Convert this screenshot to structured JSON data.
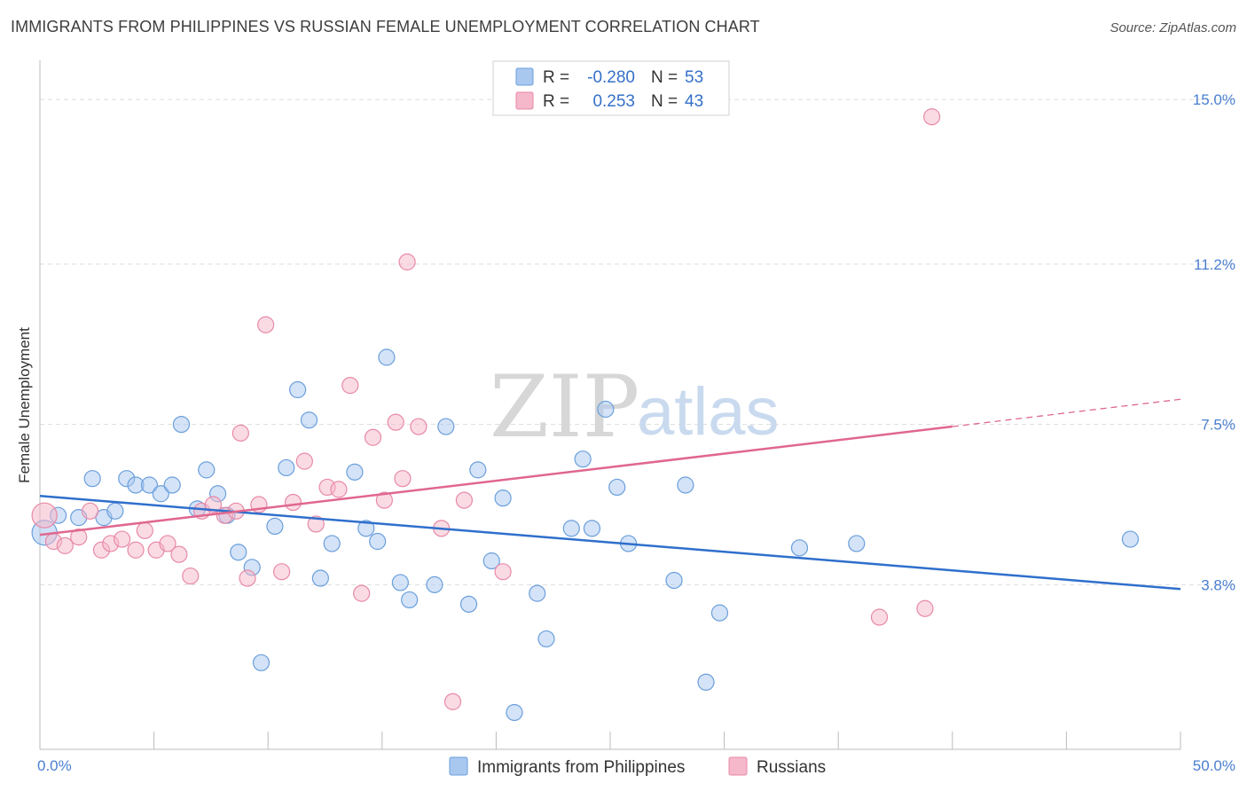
{
  "header": {
    "title": "IMMIGRANTS FROM PHILIPPINES VS RUSSIAN FEMALE UNEMPLOYMENT CORRELATION CHART",
    "source": "Source: ZipAtlas.com"
  },
  "watermark": {
    "zip": "ZIP",
    "atlas": "atlas"
  },
  "legend_box": {
    "rows": [
      {
        "r_label": "R =",
        "r_value": "-0.280",
        "n_label": "N =",
        "n_value": "53",
        "color": "#a9c8f0"
      },
      {
        "r_label": "R =",
        "r_value": "0.253",
        "n_label": "N =",
        "n_value": "43",
        "color": "#f5b8ca"
      }
    ]
  },
  "chart_data": {
    "type": "scatter",
    "title": "IMMIGRANTS FROM PHILIPPINES VS RUSSIAN FEMALE UNEMPLOYMENT CORRELATION CHART",
    "xlabel": "",
    "ylabel": "Female Unemployment",
    "xlim": [
      0,
      50
    ],
    "ylim": [
      0,
      15.7
    ],
    "x_tick_labels": [
      "0.0%",
      "50.0%"
    ],
    "y_tick_labels": [
      "3.8%",
      "7.5%",
      "11.2%",
      "15.0%"
    ],
    "y_tick_values": [
      3.8,
      7.5,
      11.2,
      15.0
    ],
    "grid": true,
    "legend_position": "bottom",
    "series": [
      {
        "name": "Immigrants from Philippines",
        "color": "#a9c8f0",
        "edge": "#6a9fdc",
        "trend_color": "#2f6fcc",
        "trend": {
          "x": [
            0,
            50
          ],
          "y": [
            5.85,
            3.7
          ]
        },
        "points": [
          {
            "x": 0.2,
            "y": 5.0
          },
          {
            "x": 0.8,
            "y": 5.4
          },
          {
            "x": 1.7,
            "y": 5.35
          },
          {
            "x": 2.3,
            "y": 6.25
          },
          {
            "x": 2.8,
            "y": 5.35
          },
          {
            "x": 3.3,
            "y": 5.5
          },
          {
            "x": 3.8,
            "y": 6.25
          },
          {
            "x": 4.2,
            "y": 6.1
          },
          {
            "x": 4.8,
            "y": 6.1
          },
          {
            "x": 5.3,
            "y": 5.9
          },
          {
            "x": 5.8,
            "y": 6.1
          },
          {
            "x": 6.2,
            "y": 7.5
          },
          {
            "x": 6.9,
            "y": 5.55
          },
          {
            "x": 7.3,
            "y": 6.45
          },
          {
            "x": 7.8,
            "y": 5.9
          },
          {
            "x": 8.2,
            "y": 5.4
          },
          {
            "x": 8.7,
            "y": 4.55
          },
          {
            "x": 9.3,
            "y": 4.2
          },
          {
            "x": 9.7,
            "y": 2.0
          },
          {
            "x": 10.3,
            "y": 5.15
          },
          {
            "x": 10.8,
            "y": 6.5
          },
          {
            "x": 11.3,
            "y": 8.3
          },
          {
            "x": 11.8,
            "y": 7.6
          },
          {
            "x": 12.3,
            "y": 3.95
          },
          {
            "x": 12.8,
            "y": 4.75
          },
          {
            "x": 13.8,
            "y": 6.4
          },
          {
            "x": 14.3,
            "y": 5.1
          },
          {
            "x": 14.8,
            "y": 4.8
          },
          {
            "x": 15.2,
            "y": 9.05
          },
          {
            "x": 15.8,
            "y": 3.85
          },
          {
            "x": 16.2,
            "y": 3.45
          },
          {
            "x": 17.3,
            "y": 3.8
          },
          {
            "x": 17.8,
            "y": 7.45
          },
          {
            "x": 18.8,
            "y": 3.35
          },
          {
            "x": 19.2,
            "y": 6.45
          },
          {
            "x": 19.8,
            "y": 4.35
          },
          {
            "x": 20.3,
            "y": 5.8
          },
          {
            "x": 20.8,
            "y": 0.85
          },
          {
            "x": 21.8,
            "y": 3.6
          },
          {
            "x": 22.2,
            "y": 2.55
          },
          {
            "x": 23.3,
            "y": 5.1
          },
          {
            "x": 23.8,
            "y": 6.7
          },
          {
            "x": 24.8,
            "y": 7.85
          },
          {
            "x": 24.2,
            "y": 5.1
          },
          {
            "x": 25.8,
            "y": 4.75
          },
          {
            "x": 25.3,
            "y": 6.05
          },
          {
            "x": 27.8,
            "y": 3.9
          },
          {
            "x": 28.3,
            "y": 6.1
          },
          {
            "x": 29.2,
            "y": 1.55
          },
          {
            "x": 29.8,
            "y": 3.15
          },
          {
            "x": 33.3,
            "y": 4.65
          },
          {
            "x": 35.8,
            "y": 4.75
          },
          {
            "x": 47.8,
            "y": 4.85
          }
        ]
      },
      {
        "name": "Russians",
        "color": "#f5b8ca",
        "edge": "#e889a7",
        "trend_color": "#e0678f",
        "trend": {
          "x": [
            0,
            40
          ],
          "y": [
            4.95,
            7.45
          ]
        },
        "trend_dashed": {
          "x": [
            40,
            50
          ],
          "y": [
            7.45,
            8.08
          ]
        },
        "points": [
          {
            "x": 0.2,
            "y": 5.4
          },
          {
            "x": 0.6,
            "y": 4.8
          },
          {
            "x": 1.1,
            "y": 4.7
          },
          {
            "x": 1.7,
            "y": 4.9
          },
          {
            "x": 2.2,
            "y": 5.5
          },
          {
            "x": 2.7,
            "y": 4.6
          },
          {
            "x": 3.1,
            "y": 4.75
          },
          {
            "x": 3.6,
            "y": 4.85
          },
          {
            "x": 4.2,
            "y": 4.6
          },
          {
            "x": 4.6,
            "y": 5.05
          },
          {
            "x": 5.1,
            "y": 4.6
          },
          {
            "x": 5.6,
            "y": 4.75
          },
          {
            "x": 6.1,
            "y": 4.5
          },
          {
            "x": 6.6,
            "y": 4.0
          },
          {
            "x": 7.1,
            "y": 5.5
          },
          {
            "x": 7.6,
            "y": 5.65
          },
          {
            "x": 8.1,
            "y": 5.4
          },
          {
            "x": 8.6,
            "y": 5.5
          },
          {
            "x": 8.8,
            "y": 7.3
          },
          {
            "x": 9.1,
            "y": 3.95
          },
          {
            "x": 9.6,
            "y": 5.65
          },
          {
            "x": 9.9,
            "y": 9.8
          },
          {
            "x": 10.6,
            "y": 4.1
          },
          {
            "x": 11.1,
            "y": 5.7
          },
          {
            "x": 11.6,
            "y": 6.65
          },
          {
            "x": 12.1,
            "y": 5.2
          },
          {
            "x": 12.6,
            "y": 6.05
          },
          {
            "x": 13.1,
            "y": 6.0
          },
          {
            "x": 13.6,
            "y": 8.4
          },
          {
            "x": 14.1,
            "y": 3.6
          },
          {
            "x": 14.6,
            "y": 7.2
          },
          {
            "x": 15.1,
            "y": 5.75
          },
          {
            "x": 15.6,
            "y": 7.55
          },
          {
            "x": 15.9,
            "y": 6.25
          },
          {
            "x": 16.1,
            "y": 11.25
          },
          {
            "x": 16.6,
            "y": 7.45
          },
          {
            "x": 17.6,
            "y": 5.1
          },
          {
            "x": 18.1,
            "y": 1.1
          },
          {
            "x": 18.6,
            "y": 5.75
          },
          {
            "x": 20.3,
            "y": 4.1
          },
          {
            "x": 36.8,
            "y": 3.05
          },
          {
            "x": 38.8,
            "y": 3.25
          },
          {
            "x": 39.1,
            "y": 14.6
          }
        ]
      }
    ]
  }
}
